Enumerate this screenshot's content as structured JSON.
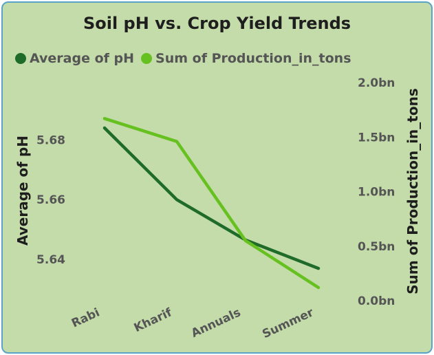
{
  "chart_data": {
    "type": "line",
    "title": "Soil pH vs. Crop Yield Trends",
    "categories": [
      "Rabi",
      "Kharif",
      "Annuals",
      "Summer"
    ],
    "series": [
      {
        "name": "Average of pH",
        "axis": "left",
        "color": "#1f6b2a",
        "values": [
          5.684,
          5.66,
          5.6465,
          5.637
        ]
      },
      {
        "name": "Sum of Production_in_tons",
        "axis": "right",
        "color": "#66c01f",
        "values": [
          1.67,
          1.46,
          0.55,
          0.12
        ]
      }
    ],
    "ylabel_left": "Average of pH",
    "ylabel_right": "Sum of Production_in_tons",
    "yticks_left": [
      "5.64",
      "5.66",
      "5.68"
    ],
    "yticks_right": [
      "0.0bn",
      "0.5bn",
      "1.0bn",
      "1.5bn",
      "2.0bn"
    ],
    "ylim_left": [
      5.6262,
      5.6992
    ],
    "ylim_right": [
      0,
      2
    ],
    "grid": false,
    "legend_position": "top-left"
  }
}
